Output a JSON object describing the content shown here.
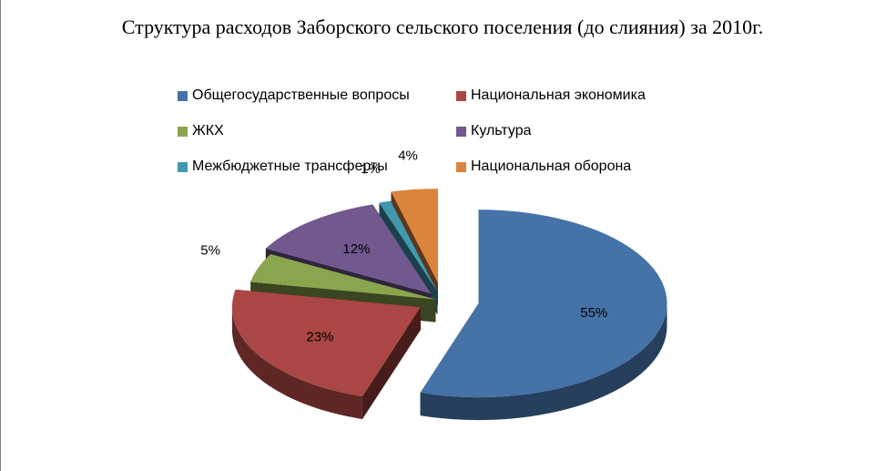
{
  "chart_data": {
    "type": "pie",
    "title": "Структура расходов Заборского сельского поселения (до слияния) за 2010г.",
    "legend_position": "top",
    "slices": [
      {
        "name": "Общегосударственные вопросы",
        "value": 55,
        "label": "55%",
        "color": "#4572a7"
      },
      {
        "name": "Национальная экономика",
        "value": 23,
        "label": "23%",
        "color": "#aa4643"
      },
      {
        "name": "ЖКХ",
        "value": 5,
        "label": "5%",
        "color": "#89a54e"
      },
      {
        "name": "Культура",
        "value": 12,
        "label": "12%",
        "color": "#71588f"
      },
      {
        "name": "Межбюджетные трансферты",
        "value": 1,
        "label": "1%",
        "color": "#4198af"
      },
      {
        "name": "Национальная оборона",
        "value": 4,
        "label": "4%",
        "color": "#db843d"
      }
    ]
  }
}
